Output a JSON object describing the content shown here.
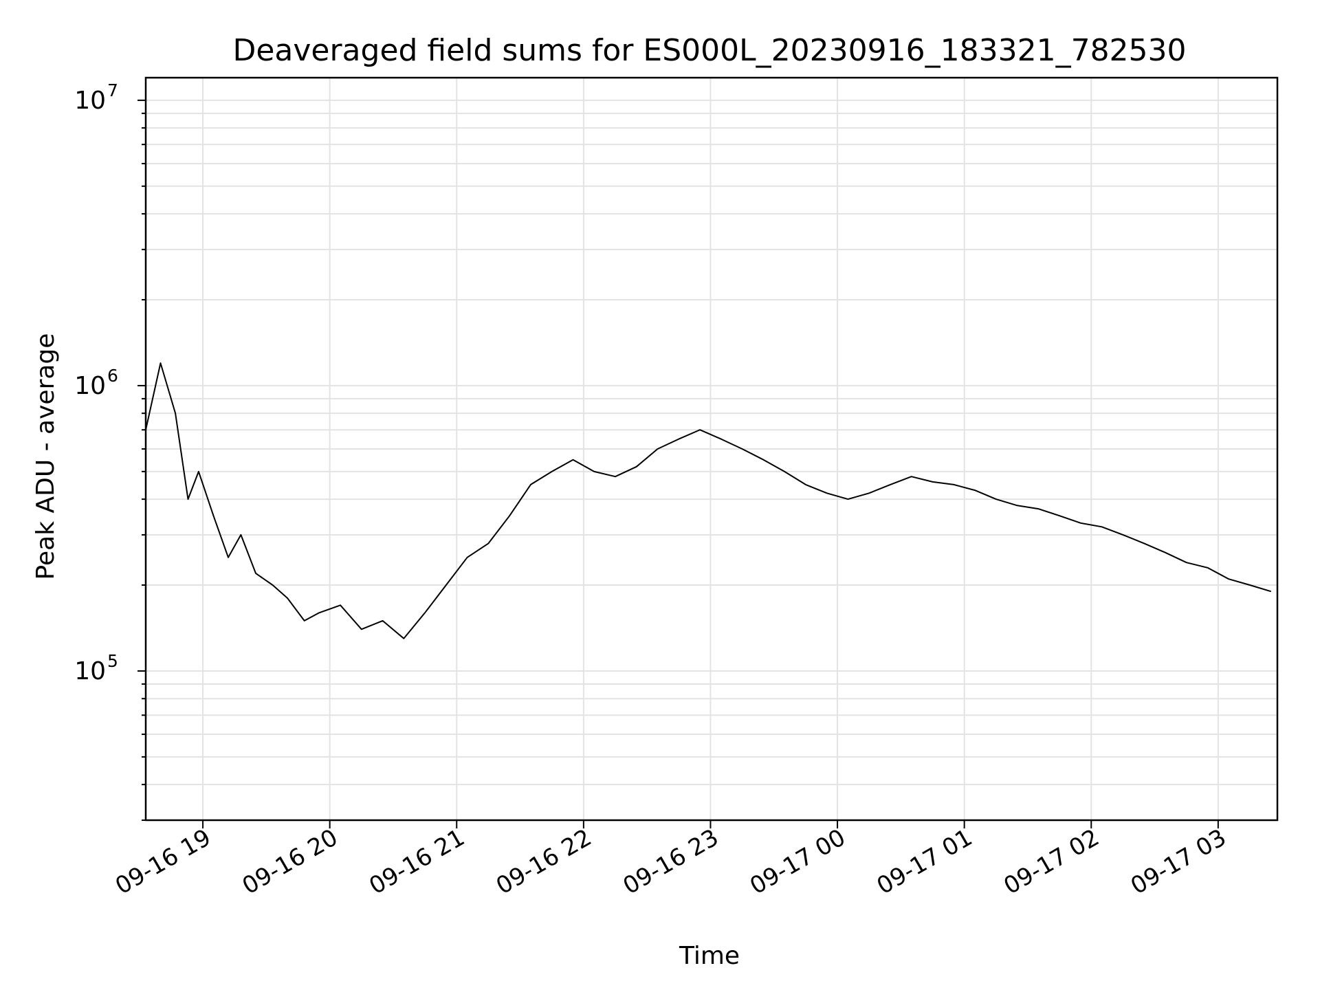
{
  "chart_data": {
    "type": "line",
    "title": "Deaveraged field sums for ES000L_20230916_183321_782530",
    "xlabel": "Time",
    "ylabel": "Peak ADU - average",
    "yscale": "log",
    "ylim": [
      30000,
      12000000
    ],
    "xlim": [
      "2023-09-16 18:33",
      "2023-09-17 03:28"
    ],
    "grid": true,
    "series_color": "#000000",
    "x_ticks": [
      {
        "value": "2023-09-16 19:00",
        "label": "09-16 19"
      },
      {
        "value": "2023-09-16 20:00",
        "label": "09-16 20"
      },
      {
        "value": "2023-09-16 21:00",
        "label": "09-16 21"
      },
      {
        "value": "2023-09-16 22:00",
        "label": "09-16 22"
      },
      {
        "value": "2023-09-16 23:00",
        "label": "09-16 23"
      },
      {
        "value": "2023-09-17 00:00",
        "label": "09-17 00"
      },
      {
        "value": "2023-09-17 01:00",
        "label": "09-17 01"
      },
      {
        "value": "2023-09-17 02:00",
        "label": "09-17 02"
      },
      {
        "value": "2023-09-17 03:00",
        "label": "09-17 03"
      }
    ],
    "y_ticks": [
      {
        "value": 100000,
        "base": "10",
        "exp": "5"
      },
      {
        "value": 1000000,
        "base": "10",
        "exp": "6"
      },
      {
        "value": 10000000,
        "base": "10",
        "exp": "7"
      }
    ],
    "series": [
      {
        "x": [
          "2023-09-16 18:33",
          "2023-09-16 18:40",
          "2023-09-16 18:47",
          "2023-09-16 18:53",
          "2023-09-16 18:58",
          "2023-09-16 19:05",
          "2023-09-16 19:12",
          "2023-09-16 19:18",
          "2023-09-16 19:25",
          "2023-09-16 19:33",
          "2023-09-16 19:40",
          "2023-09-16 19:48",
          "2023-09-16 19:55",
          "2023-09-16 20:05",
          "2023-09-16 20:15",
          "2023-09-16 20:25",
          "2023-09-16 20:35",
          "2023-09-16 20:45",
          "2023-09-16 20:55",
          "2023-09-16 21:05",
          "2023-09-16 21:15",
          "2023-09-16 21:25",
          "2023-09-16 21:35",
          "2023-09-16 21:45",
          "2023-09-16 21:55",
          "2023-09-16 22:05",
          "2023-09-16 22:15",
          "2023-09-16 22:25",
          "2023-09-16 22:35",
          "2023-09-16 22:45",
          "2023-09-16 22:55",
          "2023-09-16 23:05",
          "2023-09-16 23:15",
          "2023-09-16 23:25",
          "2023-09-16 23:35",
          "2023-09-16 23:45",
          "2023-09-16 23:55",
          "2023-09-17 00:05",
          "2023-09-17 00:15",
          "2023-09-17 00:25",
          "2023-09-17 00:35",
          "2023-09-17 00:45",
          "2023-09-17 00:55",
          "2023-09-17 01:05",
          "2023-09-17 01:15",
          "2023-09-17 01:25",
          "2023-09-17 01:35",
          "2023-09-17 01:45",
          "2023-09-17 01:55",
          "2023-09-17 02:05",
          "2023-09-17 02:15",
          "2023-09-17 02:25",
          "2023-09-17 02:35",
          "2023-09-17 02:45",
          "2023-09-17 02:55",
          "2023-09-17 03:05",
          "2023-09-17 03:15",
          "2023-09-17 03:25"
        ],
        "y": [
          700000,
          1200000,
          800000,
          400000,
          500000,
          350000,
          250000,
          300000,
          220000,
          200000,
          180000,
          150000,
          160000,
          170000,
          140000,
          150000,
          130000,
          160000,
          200000,
          250000,
          280000,
          350000,
          450000,
          500000,
          550000,
          500000,
          480000,
          520000,
          600000,
          650000,
          700000,
          650000,
          600000,
          550000,
          500000,
          450000,
          420000,
          400000,
          420000,
          450000,
          480000,
          460000,
          450000,
          430000,
          400000,
          380000,
          370000,
          350000,
          330000,
          320000,
          300000,
          280000,
          260000,
          240000,
          230000,
          210000,
          200000,
          190000
        ]
      }
    ]
  }
}
